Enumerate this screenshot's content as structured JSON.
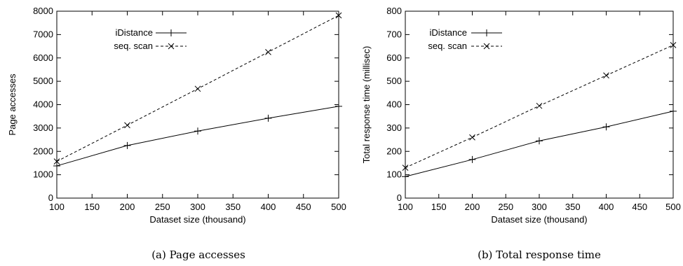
{
  "chart_data": [
    {
      "type": "line",
      "caption": "(a) Page accesses",
      "xlabel": "Dataset size (thousand)",
      "ylabel": "Page accesses",
      "xlim": [
        100,
        500
      ],
      "ylim": [
        0,
        8000
      ],
      "xticks": [
        100,
        150,
        200,
        250,
        300,
        350,
        400,
        450,
        500
      ],
      "yticks": [
        0,
        1000,
        2000,
        3000,
        4000,
        5000,
        6000,
        7000,
        8000
      ],
      "legend_position": "top-left",
      "grid": false,
      "x": [
        100,
        200,
        300,
        400,
        500
      ],
      "series": [
        {
          "name": "iDistance",
          "marker": "+",
          "dash": "solid",
          "values": [
            1380,
            2250,
            2870,
            3420,
            3930
          ]
        },
        {
          "name": "seq. scan",
          "marker": "x",
          "dash": "dashed",
          "values": [
            1570,
            3120,
            4680,
            6250,
            7820
          ]
        }
      ]
    },
    {
      "type": "line",
      "caption": "(b) Total response time",
      "xlabel": "Dataset size (thousand)",
      "ylabel": "Total response time (millisec)",
      "xlim": [
        100,
        500
      ],
      "ylim": [
        0,
        800
      ],
      "xticks": [
        100,
        150,
        200,
        250,
        300,
        350,
        400,
        450,
        500
      ],
      "yticks": [
        0,
        100,
        200,
        300,
        400,
        500,
        600,
        700,
        800
      ],
      "legend_position": "top-left",
      "grid": false,
      "x": [
        100,
        200,
        300,
        400,
        500
      ],
      "series": [
        {
          "name": "iDistance",
          "marker": "+",
          "dash": "solid",
          "values": [
            92,
            165,
            245,
            305,
            372
          ]
        },
        {
          "name": "seq. scan",
          "marker": "x",
          "dash": "dashed",
          "values": [
            130,
            260,
            395,
            525,
            655
          ]
        }
      ]
    }
  ]
}
